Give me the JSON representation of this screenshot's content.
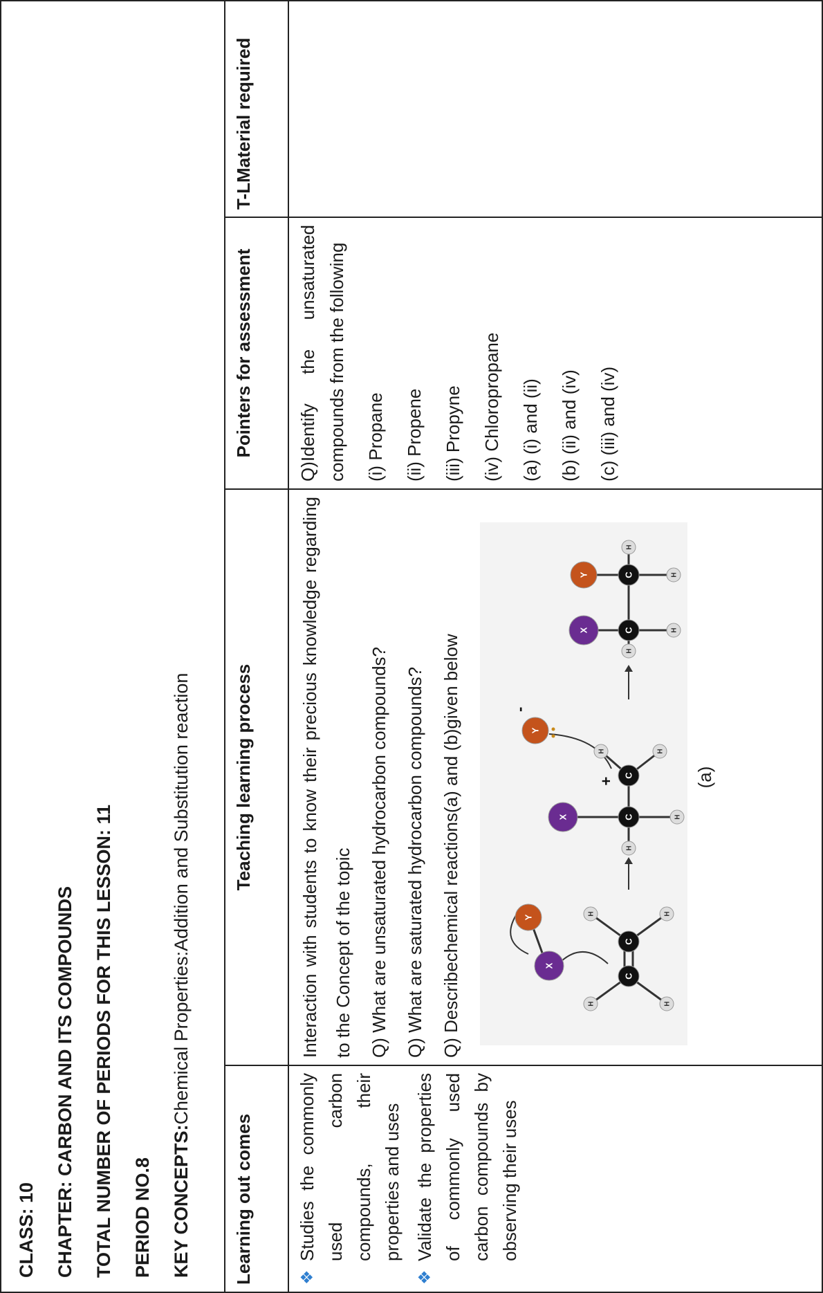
{
  "header": {
    "class": "CLASS: 10",
    "chapter": "CHAPTER: CARBON AND ITS COMPOUNDS",
    "total_periods": "TOTAL NUMBER OF PERIODS FOR THIS LESSON: 11",
    "period": "PERIOD NO.8",
    "key_concepts_label": "KEY CONCEPTS:",
    "key_concepts_text": "Chemical Properties:Addition and Substitution reaction"
  },
  "table": {
    "headers": [
      "Learning out comes",
      "Teaching learning process",
      "Pointers for assessment",
      "T-LMaterial required"
    ],
    "learning_outcomes": [
      "Studies the commonly used carbon compounds, their properties and uses",
      "Validate the properties of commonly used carbon compounds by observing their uses"
    ],
    "teaching": [
      "Interaction with students to know their precious knowledge regarding to the Concept of the topic",
      "Q) What are unsaturated hydrocarbon compounds?",
      "Q) What are saturated hydrocarbon compounds?",
      "Q) Describechemical reactions(a) and (b)given below"
    ],
    "figure": {
      "atoms": {
        "x": "X",
        "y": "Y",
        "c": "C",
        "h": "H"
      },
      "charges": {
        "plus": "+",
        "minus": "-"
      },
      "caption": "(a)"
    },
    "pointers": [
      "Q)Identify the unsaturated compounds from the following",
      "(i) Propane",
      "(ii) Propene",
      "(iii) Propyne",
      "(iv) Chloropropane",
      "(a) (i) and (ii)",
      "(b) (ii) and (iv)",
      "(c) (iii) and (iv)"
    ]
  }
}
